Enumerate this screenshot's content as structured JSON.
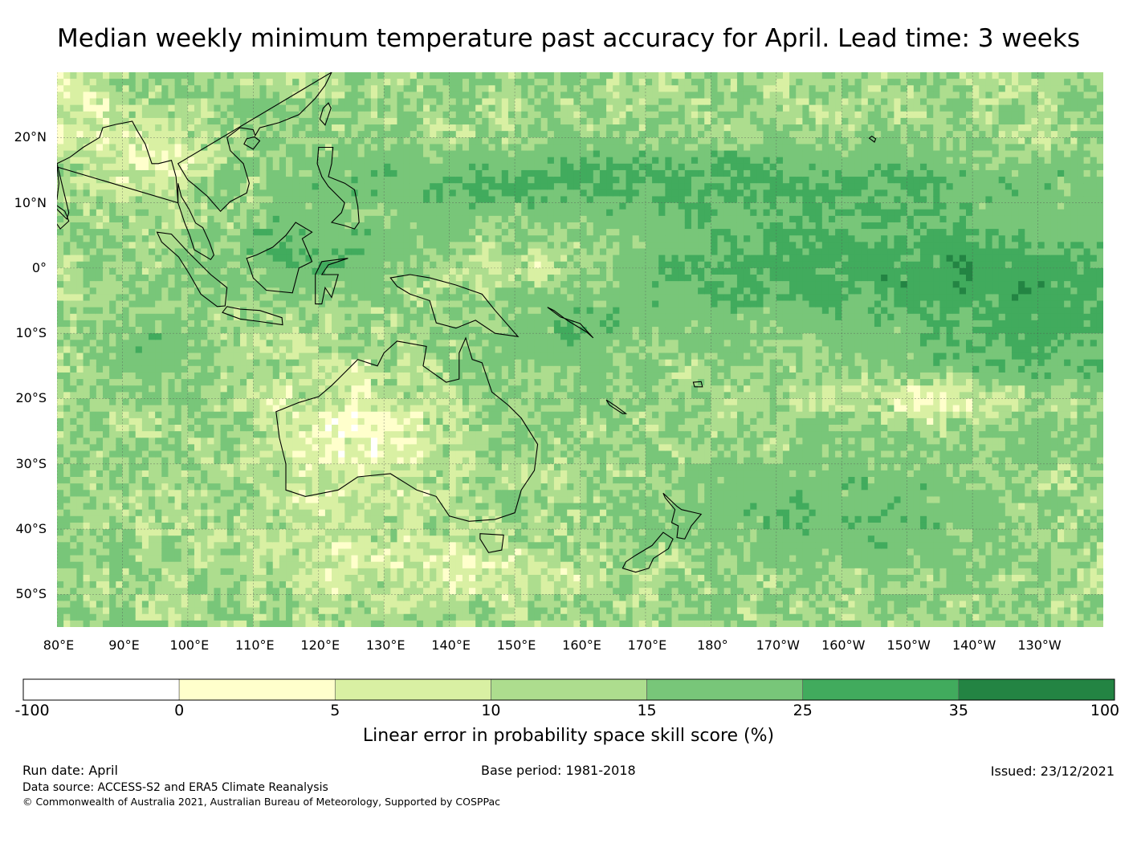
{
  "title": "Median weekly minimum temperature past accuracy for April. Lead time: 3 weeks",
  "map": {
    "lon_range": [
      80,
      240
    ],
    "lat_range": [
      -55,
      30
    ],
    "lat_ticks": [
      {
        "value": 20,
        "label": "20°N"
      },
      {
        "value": 10,
        "label": "10°N"
      },
      {
        "value": 0,
        "label": "0°"
      },
      {
        "value": -10,
        "label": "10°S"
      },
      {
        "value": -20,
        "label": "20°S"
      },
      {
        "value": -30,
        "label": "30°S"
      },
      {
        "value": -40,
        "label": "40°S"
      },
      {
        "value": -50,
        "label": "50°S"
      }
    ],
    "lon_ticks": [
      {
        "value": 80,
        "label": "80°E"
      },
      {
        "value": 90,
        "label": "90°E"
      },
      {
        "value": 100,
        "label": "100°E"
      },
      {
        "value": 110,
        "label": "110°E"
      },
      {
        "value": 120,
        "label": "120°E"
      },
      {
        "value": 130,
        "label": "130°E"
      },
      {
        "value": 140,
        "label": "140°E"
      },
      {
        "value": 150,
        "label": "150°E"
      },
      {
        "value": 160,
        "label": "160°E"
      },
      {
        "value": 170,
        "label": "170°E"
      },
      {
        "value": 180,
        "label": "180°"
      },
      {
        "value": 190,
        "label": "170°W"
      },
      {
        "value": 200,
        "label": "160°W"
      },
      {
        "value": 210,
        "label": "150°W"
      },
      {
        "value": 220,
        "label": "140°W"
      },
      {
        "value": 230,
        "label": "130°W"
      }
    ],
    "gridlines": true
  },
  "colorbar": {
    "label": "Linear error in probability space skill score (%)",
    "bounds": [
      "-100",
      "0",
      "5",
      "10",
      "15",
      "25",
      "35",
      "100"
    ],
    "colors": [
      "#ffffff",
      "#ffffcc",
      "#d9f0a3",
      "#addd8e",
      "#78c679",
      "#41ab5d",
      "#238443"
    ]
  },
  "footer": {
    "run_date": "Run date: April",
    "base_period": "Base period: 1981-2018",
    "issued": "Issued: 23/12/2021",
    "data_source": "Data source: ACCESS-S2 and ERA5 Climate Reanalysis",
    "copyright": "© Commonwealth of Australia 2021, Australian Bureau of Meteorology, Supported by COSPPac"
  }
}
